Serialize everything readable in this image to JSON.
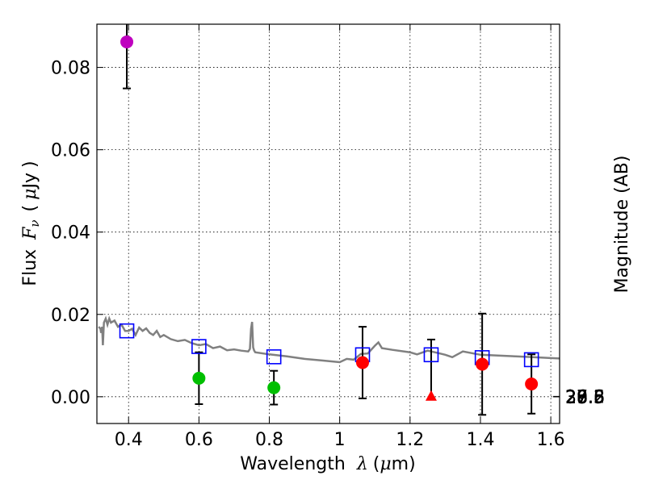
{
  "chart_data": {
    "type": "scatter",
    "xlabel": "Wavelength",
    "xlabel_math": "λ",
    "xlabel_unit_open": "(",
    "xlabel_unit_mu": "μ",
    "xlabel_unit_rest": "m)",
    "ylabel_text": "Flux",
    "ylabel_math": "F",
    "ylabel_sub": "ν",
    "ylabel_unit_open": "(",
    "ylabel_unit_mu": "μ",
    "ylabel_unit_rest": "Jy",
    "ylabel_unit_close": ")",
    "y2label": "Magnitude (AB)",
    "xlim": [
      0.31,
      1.625
    ],
    "ylim": [
      -0.0065,
      0.0905
    ],
    "grid": true,
    "x_ticks": [
      {
        "value": 0.4,
        "label": "0.4"
      },
      {
        "value": 0.6,
        "label": "0.6"
      },
      {
        "value": 0.8,
        "label": "0.8"
      },
      {
        "value": 1.0,
        "label": "1"
      },
      {
        "value": 1.2,
        "label": "1.2"
      },
      {
        "value": 1.4,
        "label": "1.4"
      },
      {
        "value": 1.6,
        "label": "1.6"
      }
    ],
    "y_ticks": [
      {
        "value": 0.0,
        "label": "0.00"
      },
      {
        "value": 0.02,
        "label": "0.02"
      },
      {
        "value": 0.04,
        "label": "0.04"
      },
      {
        "value": 0.06,
        "label": "0.06"
      },
      {
        "value": 0.08,
        "label": "0.08"
      }
    ],
    "y2_ticks": [
      {
        "value": 26.6,
        "label": "26.6"
      },
      {
        "value": 26.8,
        "label": "26.8"
      },
      {
        "value": 27.0,
        "label": "27"
      },
      {
        "value": 27.2,
        "label": "27.2"
      },
      {
        "value": 27.5,
        "label": "27.5"
      },
      {
        "value": 28.0,
        "label": "28"
      },
      {
        "value": 28.5,
        "label": "28.5"
      },
      {
        "value": 29.0,
        "label": "29"
      },
      {
        "value": 30.0,
        "label": "30"
      }
    ],
    "model_spectrum": {
      "name": "model SED",
      "color": "#808080",
      "x": [
        0.315,
        0.32,
        0.322,
        0.325,
        0.327,
        0.33,
        0.335,
        0.34,
        0.345,
        0.35,
        0.36,
        0.37,
        0.38,
        0.39,
        0.4,
        0.41,
        0.42,
        0.43,
        0.44,
        0.45,
        0.46,
        0.47,
        0.48,
        0.49,
        0.5,
        0.52,
        0.54,
        0.56,
        0.58,
        0.6,
        0.62,
        0.64,
        0.66,
        0.68,
        0.7,
        0.72,
        0.74,
        0.745,
        0.748,
        0.751,
        0.754,
        0.757,
        0.76,
        0.8,
        0.85,
        0.9,
        0.95,
        1.0,
        1.02,
        1.04,
        1.06,
        1.08,
        1.1,
        1.11,
        1.12,
        1.15,
        1.2,
        1.22,
        1.25,
        1.28,
        1.3,
        1.32,
        1.35,
        1.4,
        1.45,
        1.5,
        1.55,
        1.6,
        1.625
      ],
      "y": [
        0.017,
        0.0165,
        0.0155,
        0.017,
        0.0125,
        0.018,
        0.019,
        0.0175,
        0.019,
        0.018,
        0.0185,
        0.017,
        0.0175,
        0.016,
        0.016,
        0.0165,
        0.015,
        0.0168,
        0.016,
        0.0166,
        0.0155,
        0.015,
        0.016,
        0.0145,
        0.015,
        0.014,
        0.0135,
        0.0138,
        0.013,
        0.0125,
        0.0128,
        0.0118,
        0.0122,
        0.0113,
        0.0115,
        0.0112,
        0.011,
        0.0116,
        0.0165,
        0.0182,
        0.012,
        0.0112,
        0.0108,
        0.0103,
        0.0098,
        0.0092,
        0.0088,
        0.0084,
        0.0092,
        0.009,
        0.0104,
        0.0105,
        0.0124,
        0.0132,
        0.0118,
        0.0114,
        0.0108,
        0.0103,
        0.0112,
        0.0106,
        0.0102,
        0.0096,
        0.011,
        0.0102,
        0.01,
        0.0098,
        0.0096,
        0.0094,
        0.0093
      ]
    },
    "model_photometry": {
      "name": "model band fluxes",
      "marker": "open-square",
      "color": "#0000ff",
      "x": [
        0.395,
        0.6,
        0.813,
        1.065,
        1.26,
        1.405,
        1.545
      ],
      "y": [
        0.016,
        0.0122,
        0.0097,
        0.0102,
        0.0102,
        0.0095,
        0.009
      ]
    },
    "observed_photometry": [
      {
        "x": 0.395,
        "y": 0.0862,
        "err": 0.0113,
        "color": "#bf00bf",
        "marker": "circle"
      },
      {
        "x": 0.6,
        "y": 0.0045,
        "err": 0.0063,
        "color": "#00bf00",
        "marker": "circle"
      },
      {
        "x": 0.813,
        "y": 0.0022,
        "err": 0.0041,
        "color": "#00bf00",
        "marker": "circle"
      },
      {
        "x": 1.065,
        "y": 0.0083,
        "err": 0.0087,
        "color": "#ff0000",
        "marker": "circle"
      },
      {
        "x": 1.26,
        "y": 0.0002,
        "err_up": 0.0137,
        "color": "#ff0000",
        "marker": "triangle-up"
      },
      {
        "x": 1.405,
        "y": 0.0079,
        "err": 0.0123,
        "color": "#ff0000",
        "marker": "circle"
      },
      {
        "x": 1.545,
        "y": 0.0031,
        "err": 0.0072,
        "color": "#ff0000",
        "marker": "circle"
      }
    ]
  }
}
